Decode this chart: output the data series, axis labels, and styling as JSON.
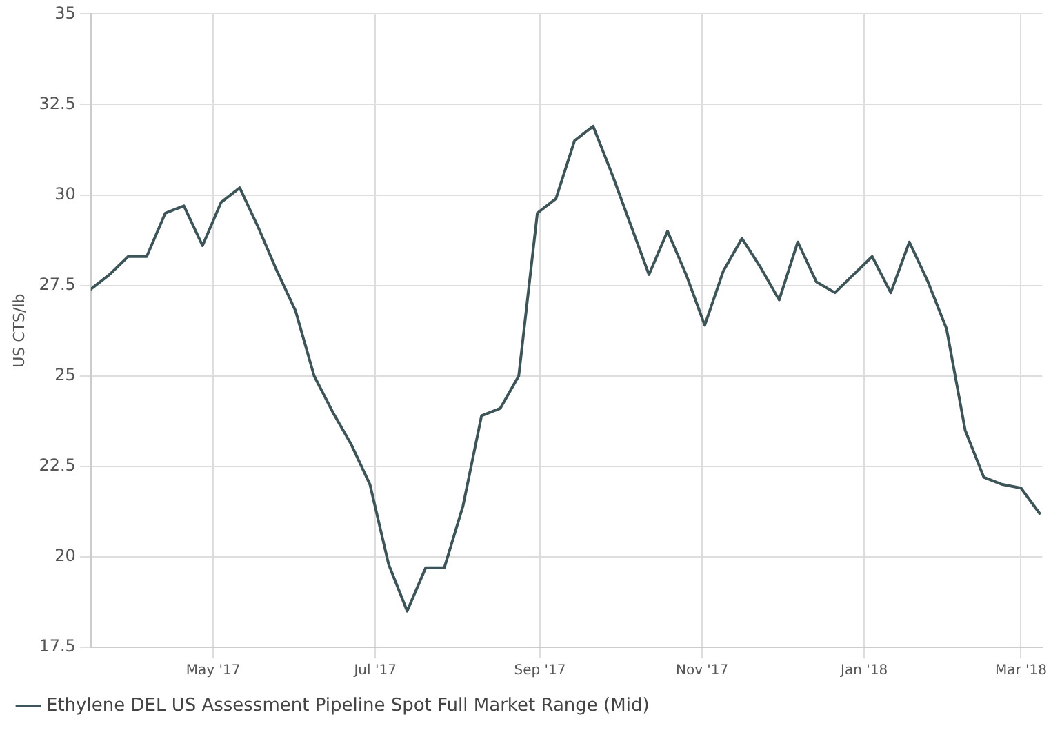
{
  "chart_data": {
    "type": "line",
    "ylabel": "US CTS/lb",
    "x": [
      "2017-03-16",
      "2017-03-23",
      "2017-03-30",
      "2017-04-06",
      "2017-04-13",
      "2017-04-20",
      "2017-04-27",
      "2017-05-04",
      "2017-05-11",
      "2017-05-18",
      "2017-05-25",
      "2017-06-01",
      "2017-06-08",
      "2017-06-15",
      "2017-06-22",
      "2017-06-29",
      "2017-07-06",
      "2017-07-13",
      "2017-07-20",
      "2017-07-27",
      "2017-08-03",
      "2017-08-10",
      "2017-08-17",
      "2017-08-24",
      "2017-08-31",
      "2017-09-07",
      "2017-09-14",
      "2017-09-21",
      "2017-09-28",
      "2017-10-05",
      "2017-10-12",
      "2017-10-19",
      "2017-10-26",
      "2017-11-02",
      "2017-11-09",
      "2017-11-16",
      "2017-11-23",
      "2017-11-30",
      "2017-12-07",
      "2017-12-14",
      "2017-12-21",
      "2017-12-28",
      "2018-01-04",
      "2018-01-11",
      "2018-01-18",
      "2018-01-25",
      "2018-02-01",
      "2018-02-08",
      "2018-02-15",
      "2018-02-22",
      "2018-03-01",
      "2018-03-08"
    ],
    "series": [
      {
        "name": "Ethylene DEL US Assessment Pipeline Spot Full Market Range (Mid)",
        "color": "#3d5559",
        "values": [
          27.4,
          27.8,
          28.3,
          28.3,
          29.5,
          29.7,
          28.6,
          29.8,
          30.2,
          29.1,
          27.9,
          26.8,
          25.0,
          24.0,
          23.1,
          22.0,
          19.8,
          18.5,
          19.7,
          19.7,
          21.4,
          23.9,
          24.1,
          25.0,
          29.5,
          29.9,
          31.5,
          31.9,
          30.6,
          29.2,
          27.8,
          29.0,
          27.8,
          26.4,
          27.9,
          28.8,
          28.0,
          27.1,
          28.7,
          27.6,
          27.3,
          27.8,
          28.3,
          27.3,
          28.7,
          27.6,
          26.3,
          23.5,
          22.2,
          22.0,
          21.9,
          21.2
        ]
      }
    ],
    "xlim": [
      "2017-03-16",
      "2018-03-09"
    ],
    "xticks": [
      {
        "value": "2017-05-01",
        "label": "May '17"
      },
      {
        "value": "2017-07-01",
        "label": "Jul '17"
      },
      {
        "value": "2017-09-01",
        "label": "Sep '17"
      },
      {
        "value": "2017-11-01",
        "label": "Nov '17"
      },
      {
        "value": "2018-01-01",
        "label": "Jan '18"
      },
      {
        "value": "2018-03-01",
        "label": "Mar '18"
      }
    ],
    "ylim": [
      17.5,
      35
    ],
    "yticks": [
      17.5,
      20,
      22.5,
      25,
      27.5,
      30,
      32.5,
      35
    ],
    "grid": true,
    "legend": "bottom",
    "marker": "none",
    "line_style": "solid"
  }
}
